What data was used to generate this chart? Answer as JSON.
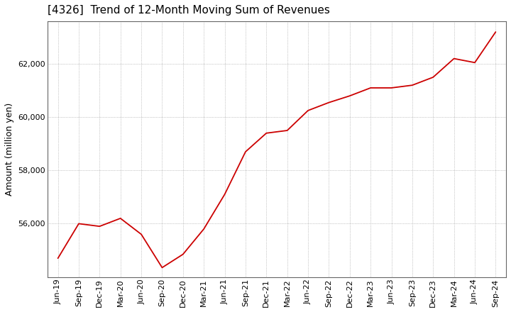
{
  "title": "[4326]  Trend of 12-Month Moving Sum of Revenues",
  "ylabel": "Amount (million yen)",
  "line_color": "#cc0000",
  "background_color": "#ffffff",
  "plot_bg_color": "#ffffff",
  "grid_color": "#999999",
  "x_labels": [
    "Jun-19",
    "Sep-19",
    "Dec-19",
    "Mar-20",
    "Jun-20",
    "Sep-20",
    "Dec-20",
    "Mar-21",
    "Jun-21",
    "Sep-21",
    "Dec-21",
    "Mar-22",
    "Jun-22",
    "Sep-22",
    "Dec-22",
    "Mar-23",
    "Jun-23",
    "Sep-23",
    "Dec-23",
    "Mar-24",
    "Jun-24",
    "Sep-24"
  ],
  "values": [
    54700,
    56000,
    55900,
    56200,
    55600,
    54350,
    54850,
    55800,
    57100,
    58700,
    59400,
    59500,
    60250,
    60550,
    60800,
    61100,
    61100,
    61200,
    61500,
    62200,
    62050,
    63200
  ],
  "ylim_min": 54000,
  "ylim_max": 63600,
  "yticks": [
    56000,
    58000,
    60000,
    62000
  ],
  "title_fontsize": 11,
  "ylabel_fontsize": 9,
  "tick_fontsize": 8
}
